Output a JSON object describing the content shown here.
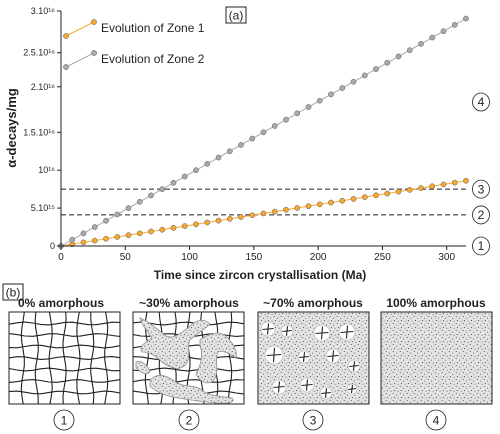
{
  "panel_a_label": "(a)",
  "panel_b_label": "(b)",
  "chart_data": {
    "type": "line",
    "xlabel": "Time since zircon crystallisation (Ma)",
    "ylabel": "α-decays/mg",
    "xlim": [
      0,
      315
    ],
    "ylim": [
      0,
      31000000000000000
    ],
    "x_ticks": [
      0,
      50,
      100,
      150,
      200,
      250,
      300
    ],
    "y_ticks": [
      {
        "value": 0,
        "label": "0"
      },
      {
        "value": 5000000000000000,
        "label": "5.10¹⁵"
      },
      {
        "value": 10000000000000000,
        "label": "10¹⁶"
      },
      {
        "value": 15000000000000000,
        "label": "1.5.10¹⁶"
      },
      {
        "value": 21000000000000000,
        "label": "2.10¹⁶"
      },
      {
        "value": 25500000000000000,
        "label": "2.5.10¹⁶"
      },
      {
        "value": 31000000000000000,
        "label": "3.10¹⁶"
      }
    ],
    "grid": false,
    "legend_position": "top-left",
    "series": [
      {
        "name": "Evolution of Zone 1",
        "color": "#f7a833",
        "x_start": 0,
        "x_step": 8.75,
        "x_end": 315,
        "y_start": 0,
        "y_end": 8600000000000000
      },
      {
        "name": "Evolution of Zone 2",
        "color": "#a7a9ac",
        "x_start": 0,
        "x_step": 8.75,
        "x_end": 315,
        "y_start": 0,
        "y_end": 30000000000000000
      }
    ],
    "thresholds": [
      {
        "value": 4100000000000000,
        "style": "dashed"
      },
      {
        "value": 7500000000000000,
        "style": "dashed"
      }
    ],
    "zone_markers": [
      {
        "label": "1",
        "value": 0
      },
      {
        "label": "2",
        "value": 4100000000000000
      },
      {
        "label": "3",
        "value": 7500000000000000
      },
      {
        "label": "4",
        "value": 19000000000000000
      }
    ]
  },
  "panels": [
    {
      "title": "0% amorphous",
      "number": "1",
      "kind": "grid"
    },
    {
      "title": "~30% amorphous",
      "number": "2",
      "kind": "veins"
    },
    {
      "title": "~70% amorphous",
      "number": "3",
      "kind": "islands"
    },
    {
      "title": "100% amorphous",
      "number": "4",
      "kind": "full"
    }
  ]
}
